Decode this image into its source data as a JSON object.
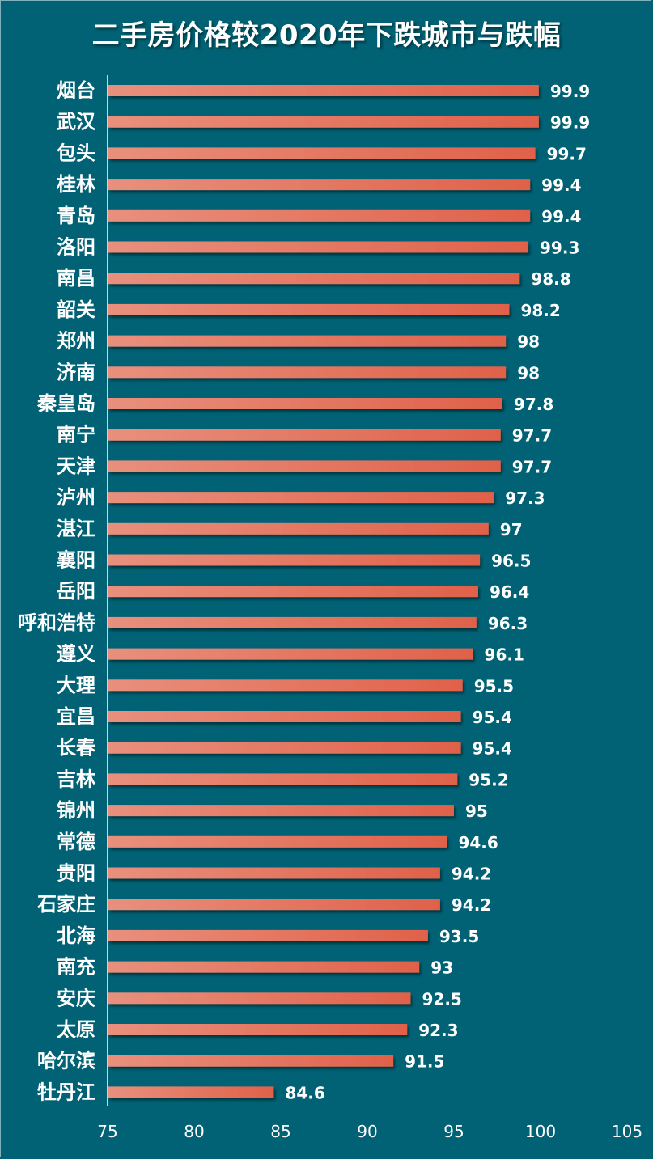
{
  "chart_data": {
    "type": "bar",
    "orientation": "horizontal",
    "title": "二手房价格较2020年下跌城市与跌幅",
    "xlabel": "",
    "ylabel": "",
    "xlim": [
      75,
      105
    ],
    "xticks": [
      "75",
      "80",
      "85",
      "90",
      "95",
      "100",
      "105"
    ],
    "categories": [
      "烟台",
      "武汉",
      "包头",
      "桂林",
      "青岛",
      "洛阳",
      "南昌",
      "韶关",
      "郑州",
      "济南",
      "秦皇岛",
      "南宁",
      "天津",
      "泸州",
      "湛江",
      "襄阳",
      "岳阳",
      "呼和浩特",
      "遵义",
      "大理",
      "宜昌",
      "长春",
      "吉林",
      "锦州",
      "常德",
      "贵阳",
      "石家庄",
      "北海",
      "南充",
      "安庆",
      "太原",
      "哈尔滨",
      "牡丹江"
    ],
    "values": [
      99.9,
      99.9,
      99.7,
      99.4,
      99.4,
      99.3,
      98.8,
      98.2,
      98,
      98,
      97.8,
      97.7,
      97.7,
      97.3,
      97,
      96.5,
      96.4,
      96.3,
      96.1,
      95.5,
      95.4,
      95.4,
      95.2,
      95,
      94.6,
      94.2,
      94.2,
      93.5,
      93,
      92.5,
      92.3,
      91.5,
      84.6
    ],
    "value_labels": [
      "99.9",
      "99.9",
      "99.7",
      "99.4",
      "99.4",
      "99.3",
      "98.8",
      "98.2",
      "98",
      "98",
      "97.8",
      "97.7",
      "97.7",
      "97.3",
      "97",
      "96.5",
      "96.4",
      "96.3",
      "96.1",
      "95.5",
      "95.4",
      "95.4",
      "95.2",
      "95",
      "94.6",
      "94.2",
      "94.2",
      "93.5",
      "93",
      "92.5",
      "92.3",
      "91.5",
      "84.6"
    ],
    "grid": false,
    "legend": "none"
  },
  "colors": {
    "background": "#006274",
    "bar_start": "#e8907d",
    "bar_end": "#e0614a",
    "text": "#ffffff",
    "axis": "#ffffff"
  }
}
